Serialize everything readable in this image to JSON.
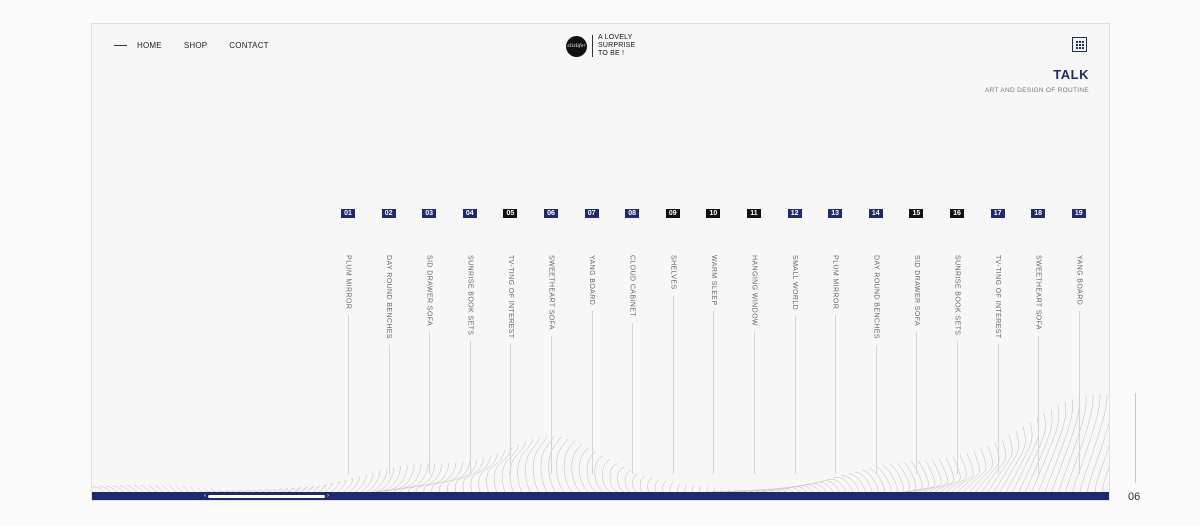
{
  "nav": {
    "items": [
      "HOME",
      "SHOP",
      "CONTACT"
    ]
  },
  "logo": {
    "mark": "zlizlife!",
    "tagline": [
      "A LOVELY",
      "SURPRISE",
      "TO BE !"
    ]
  },
  "header": {
    "title": "TALK",
    "subtitle": "ART AND DESIGN OF ROUTINE"
  },
  "items": [
    {
      "num": "01",
      "label": "PLUM MIRROR",
      "style": "blue"
    },
    {
      "num": "02",
      "label": "DAY ROUND BENCHES",
      "style": "blue"
    },
    {
      "num": "03",
      "label": "SID DRAWER SOFA",
      "style": "blue"
    },
    {
      "num": "04",
      "label": "SUNRISE BOOK SETS",
      "style": "blue"
    },
    {
      "num": "05",
      "label": "TV-TING OF INTEREST",
      "style": "black"
    },
    {
      "num": "06",
      "label": "SWEETHEART SOFA",
      "style": "blue"
    },
    {
      "num": "07",
      "label": "YANG BOARD",
      "style": "blue"
    },
    {
      "num": "08",
      "label": "CLOUD CABINET",
      "style": "blue"
    },
    {
      "num": "09",
      "label": "SHELVES",
      "style": "black"
    },
    {
      "num": "10",
      "label": "WARM SLEEP",
      "style": "black"
    },
    {
      "num": "11",
      "label": "HANGING WINDOW",
      "style": "black"
    },
    {
      "num": "12",
      "label": "SMALL WORLD",
      "style": "blue"
    },
    {
      "num": "13",
      "label": "PLUM MIRROR",
      "style": "blue"
    },
    {
      "num": "14",
      "label": "DAY ROUND BENCHES",
      "style": "blue"
    },
    {
      "num": "15",
      "label": "SID DRAWER SOFA",
      "style": "black"
    },
    {
      "num": "16",
      "label": "SUNRISE BOOK SETS",
      "style": "black"
    },
    {
      "num": "17",
      "label": "TV-TING OF INTEREST",
      "style": "blue"
    },
    {
      "num": "18",
      "label": "SWEETHEART SOFA",
      "style": "blue"
    },
    {
      "num": "19",
      "label": "YANG BOARD",
      "style": "blue"
    }
  ],
  "icons": {
    "menu": "grid-menu-icon",
    "scroll_left": "chevron-left-icon",
    "scroll_right": "chevron-right-icon"
  },
  "colors": {
    "accent": "#1f2a6e",
    "badge_dark": "#111111"
  },
  "page_number": "06"
}
